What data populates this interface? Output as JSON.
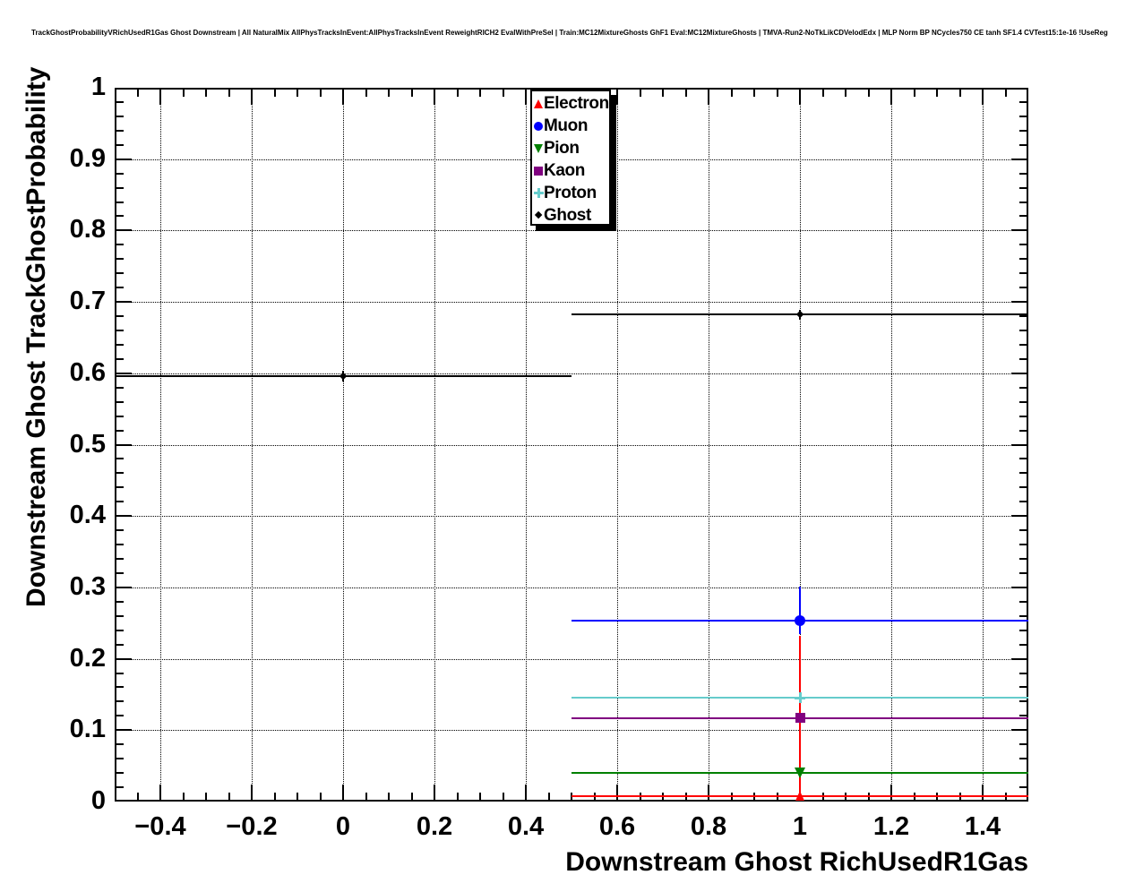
{
  "header": {
    "title": "TrackGhostProbabilityVRichUsedR1Gas Ghost Downstream | All NaturalMix AllPhysTracksInEvent:AllPhysTracksInEvent ReweightRICH2 EvalWithPreSel | Train:MC12MixtureGhosts GhF1 Eval:MC12MixtureGhosts | TMVA-Run2-NoTkLikCDVelodEdx | MLP Norm BP NCycles750 CE tanh SF1.4 CVTest15:1e-16 !UseReg"
  },
  "chart_data": {
    "type": "line",
    "subtype": "histogram-points-with-errorbars",
    "title": "TrackGhostProbabilityVRichUsedR1Gas Ghost Downstream",
    "xlabel": "Downstream Ghost RichUsedR1Gas",
    "ylabel": "Downstream Ghost TrackGhostProbability",
    "xlim": [
      -0.5,
      1.5
    ],
    "ylim": [
      0,
      1
    ],
    "grid": true,
    "x_major_ticks": [
      -0.4,
      -0.2,
      0,
      0.2,
      0.4,
      0.6,
      0.8,
      1,
      1.2,
      1.4
    ],
    "x_tick_labels": [
      "−0.4",
      "−0.2",
      "0",
      "0.2",
      "0.4",
      "0.6",
      "0.8",
      "1",
      "1.2",
      "1.4"
    ],
    "x_minor_step": 0.05,
    "y_major_ticks": [
      0,
      0.1,
      0.2,
      0.3,
      0.4,
      0.5,
      0.6,
      0.7,
      0.8,
      0.9,
      1
    ],
    "y_tick_labels": [
      "0",
      "0.1",
      "0.2",
      "0.3",
      "0.4",
      "0.5",
      "0.6",
      "0.7",
      "0.8",
      "0.9",
      "1"
    ],
    "y_minor_step": 0.02,
    "legend": {
      "position": "top-center",
      "entries": [
        {
          "label": "Electron",
          "marker": "triangle-up",
          "color": "#ff0000"
        },
        {
          "label": "Muon",
          "marker": "circle",
          "color": "#0000ff"
        },
        {
          "label": "Pion",
          "marker": "triangle-down",
          "color": "#008000"
        },
        {
          "label": "Kaon",
          "marker": "square",
          "color": "#800080"
        },
        {
          "label": "Proton",
          "marker": "plus",
          "color": "#66cccc"
        },
        {
          "label": "Ghost",
          "marker": "diamond",
          "color": "#000000"
        }
      ]
    },
    "series": [
      {
        "name": "Muon",
        "color": "#0000ff",
        "marker": "circle",
        "marker_size": 12,
        "points": [
          {
            "x": 1,
            "y": 0.253,
            "xlo": 0.5,
            "xhi": 1.5,
            "ylo": 0.235,
            "yhi": 0.301
          }
        ]
      },
      {
        "name": "Proton",
        "color": "#66cccc",
        "marker": "plus",
        "marker_size": 12,
        "points": [
          {
            "x": 1,
            "y": 0.145,
            "xlo": 0.5,
            "xhi": 1.5,
            "ylo": 0.142,
            "yhi": 0.148
          }
        ]
      },
      {
        "name": "Kaon",
        "color": "#800080",
        "marker": "square",
        "marker_size": 11,
        "points": [
          {
            "x": 1,
            "y": 0.117,
            "xlo": 0.5,
            "xhi": 1.5,
            "ylo": 0.114,
            "yhi": 0.12
          }
        ]
      },
      {
        "name": "Pion",
        "color": "#008000",
        "marker": "triangle-down",
        "marker_size": 12,
        "points": [
          {
            "x": 1,
            "y": 0.04,
            "xlo": 0.5,
            "xhi": 1.5,
            "ylo": 0.037,
            "yhi": 0.043
          }
        ]
      },
      {
        "name": "Ghost",
        "color": "#000000",
        "marker": "diamond",
        "marker_size": 8,
        "points": [
          {
            "x": 0,
            "y": 0.596,
            "xlo": -0.5,
            "xhi": 0.5,
            "ylo": 0.589,
            "yhi": 0.603
          },
          {
            "x": 1,
            "y": 0.682,
            "xlo": 0.5,
            "xhi": 1.5,
            "ylo": 0.675,
            "yhi": 0.689
          }
        ]
      },
      {
        "name": "Electron",
        "color": "#ff0000",
        "marker": "triangle-up",
        "marker_size": 11,
        "points": [
          {
            "x": 1,
            "y": 0.008,
            "xlo": 0.5,
            "xhi": 1.5,
            "ylo": 0.008,
            "yhi": 0.232
          }
        ]
      }
    ]
  }
}
